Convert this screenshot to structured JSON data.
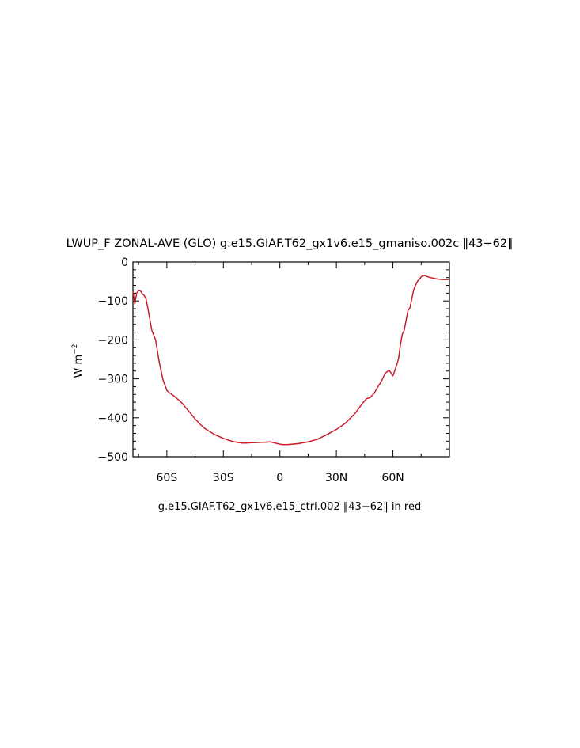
{
  "chart_data": {
    "type": "line",
    "title": "LWUP_F ZONAL-AVE (GLO) g.e15.GIAF.T62_gx1v6.e15_gmaniso.002c ‖43−62‖",
    "ylabel": "W m",
    "ylabel_sup": "−2",
    "xlabel": "g.e15.GIAF.T62_gx1v6.e15_ctrl.002 ‖43−62‖ in red",
    "xlim": [
      -78,
      90
    ],
    "ylim": [
      -500,
      0
    ],
    "x_ticks": [
      {
        "value": -60,
        "label": "60S"
      },
      {
        "value": -30,
        "label": "30S"
      },
      {
        "value": 0,
        "label": "0"
      },
      {
        "value": 30,
        "label": "30N"
      },
      {
        "value": 60,
        "label": "60N"
      }
    ],
    "y_ticks": [
      {
        "value": 0,
        "label": "0"
      },
      {
        "value": -100,
        "label": "−100"
      },
      {
        "value": -200,
        "label": "−200"
      },
      {
        "value": -300,
        "label": "−300"
      },
      {
        "value": -400,
        "label": "−400"
      },
      {
        "value": -500,
        "label": "−500"
      }
    ],
    "grid": false,
    "series": [
      {
        "color": "#1f1fb4",
        "x": [
          -78,
          -77,
          -76,
          -75,
          -74,
          -73,
          -72,
          -71,
          -70,
          -68,
          -66,
          -64,
          -62,
          -60,
          -58,
          -56,
          -54,
          -52,
          -50,
          -48,
          -45,
          -42,
          -40,
          -35,
          -30,
          -25,
          -20,
          -15,
          -10,
          -5,
          0,
          2,
          4,
          6,
          8,
          10,
          15,
          20,
          25,
          30,
          35,
          40,
          42,
          44,
          46,
          48,
          50,
          52,
          54,
          56,
          58,
          60,
          62,
          63,
          64,
          65,
          66,
          67,
          68,
          69,
          70,
          71,
          72,
          73,
          74,
          75,
          76,
          77,
          78,
          80,
          82,
          84,
          86,
          88,
          90
        ],
        "y": [
          -75,
          -108,
          -80,
          -73,
          -74,
          -82,
          -86,
          -96,
          -120,
          -175,
          -200,
          -258,
          -303,
          -330,
          -338,
          -345,
          -353,
          -362,
          -374,
          -385,
          -403,
          -418,
          -427,
          -442,
          -453,
          -461,
          -465,
          -464,
          -463,
          -462,
          -468,
          -469,
          -469,
          -468,
          -467,
          -466,
          -462,
          -455,
          -443,
          -430,
          -413,
          -388,
          -375,
          -362,
          -351,
          -348,
          -337,
          -321,
          -305,
          -285,
          -278,
          -292,
          -265,
          -248,
          -212,
          -185,
          -175,
          -150,
          -125,
          -118,
          -95,
          -72,
          -60,
          -50,
          -45,
          -38,
          -35,
          -35,
          -37,
          -40,
          -42,
          -44,
          -45,
          -45,
          -45
        ]
      },
      {
        "color": "#e01818",
        "x": [
          -78,
          -77,
          -76,
          -75,
          -74,
          -73,
          -72,
          -71,
          -70,
          -68,
          -66,
          -64,
          -62,
          -60,
          -58,
          -56,
          -54,
          -52,
          -50,
          -48,
          -45,
          -42,
          -40,
          -35,
          -30,
          -25,
          -20,
          -15,
          -10,
          -5,
          0,
          2,
          4,
          6,
          8,
          10,
          15,
          20,
          25,
          30,
          35,
          40,
          42,
          44,
          46,
          48,
          50,
          52,
          54,
          56,
          58,
          60,
          62,
          63,
          64,
          65,
          66,
          67,
          68,
          69,
          70,
          71,
          72,
          73,
          74,
          75,
          76,
          77,
          78,
          80,
          82,
          84,
          86,
          88,
          90
        ],
        "y": [
          -75,
          -107,
          -80,
          -73,
          -74,
          -82,
          -86,
          -96,
          -120,
          -175,
          -200,
          -258,
          -303,
          -330,
          -338,
          -345,
          -353,
          -362,
          -374,
          -385,
          -403,
          -418,
          -427,
          -442,
          -453,
          -461,
          -465,
          -464,
          -463,
          -462,
          -468,
          -469,
          -469,
          -468,
          -467,
          -466,
          -462,
          -455,
          -443,
          -430,
          -413,
          -388,
          -375,
          -362,
          -351,
          -348,
          -337,
          -321,
          -305,
          -285,
          -278,
          -292,
          -265,
          -248,
          -212,
          -185,
          -175,
          -150,
          -125,
          -118,
          -95,
          -72,
          -60,
          -50,
          -45,
          -38,
          -35,
          -35,
          -37,
          -40,
          -42,
          -44,
          -45,
          -45,
          -45
        ]
      }
    ]
  }
}
